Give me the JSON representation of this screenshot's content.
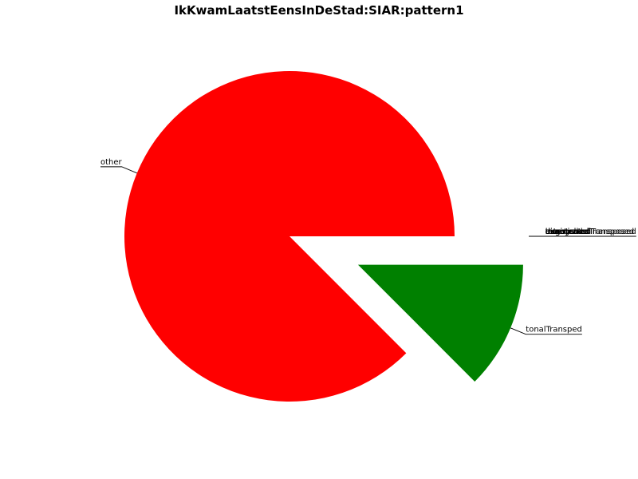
{
  "chart_data": {
    "type": "pie",
    "title": "IkKwamLaatstEensInDeStad:SIAR:pattern1",
    "slices": [
      {
        "label": "other",
        "value": 87.5,
        "color": "#ff0000",
        "exploded": false
      },
      {
        "label": "tonalTransped",
        "value": 12.5,
        "color": "#008000",
        "exploded": true
      },
      {
        "label": "exact",
        "value": 0,
        "color": "#0000ff",
        "exploded": true
      },
      {
        "label": "transposed",
        "value": 0,
        "color": "#00bfbf",
        "exploded": true
      },
      {
        "label": "augmented",
        "value": 0,
        "color": "#bf00bf",
        "exploded": true
      },
      {
        "label": "augmentedTransposed",
        "value": 0,
        "color": "#bfbf00",
        "exploded": true
      },
      {
        "label": "diminished",
        "value": 0,
        "color": "#000000",
        "exploded": true
      },
      {
        "label": "diminishedTransposed",
        "value": 0,
        "color": "#ff8000",
        "exploded": true
      },
      {
        "label": "inverted",
        "value": 0,
        "color": "#800080",
        "exploded": true
      },
      {
        "label": "retrograde",
        "value": 0,
        "color": "#808080",
        "exploded": true
      }
    ],
    "legend": "none"
  }
}
